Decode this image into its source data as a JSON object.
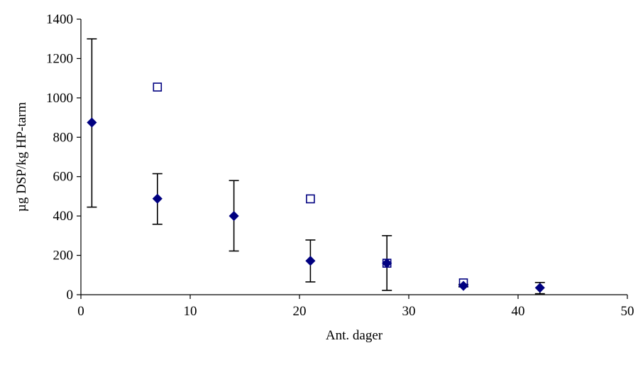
{
  "chart_data": {
    "type": "scatter",
    "xlabel": "Ant. dager",
    "ylabel": "µg DSP/kg HP-tarm",
    "xlim": [
      0,
      50
    ],
    "ylim": [
      0,
      1400
    ],
    "xticks": [
      "0",
      "10",
      "20",
      "30",
      "40",
      "50"
    ],
    "yticks": [
      "0",
      "200",
      "400",
      "600",
      "800",
      "1000",
      "1200",
      "1400"
    ],
    "grid": false,
    "series": [
      {
        "marker": "filled-diamond",
        "color": "#000080",
        "points": [
          {
            "x": 1,
            "y": 875,
            "err_low": 445,
            "err_high": 1300
          },
          {
            "x": 7,
            "y": 488,
            "err_low": 358,
            "err_high": 615
          },
          {
            "x": 14,
            "y": 400,
            "err_low": 222,
            "err_high": 580
          },
          {
            "x": 21,
            "y": 172,
            "err_low": 65,
            "err_high": 278
          },
          {
            "x": 28,
            "y": 160,
            "err_low": 22,
            "err_high": 300
          },
          {
            "x": 35,
            "y": 45,
            "err_low": 40,
            "err_high": 52
          },
          {
            "x": 42,
            "y": 35,
            "err_low": 5,
            "err_high": 62
          }
        ]
      },
      {
        "marker": "open-square",
        "color": "#000080",
        "points": [
          {
            "x": 7,
            "y": 1055
          },
          {
            "x": 21,
            "y": 487
          },
          {
            "x": 28,
            "y": 160
          },
          {
            "x": 35,
            "y": 60
          }
        ]
      }
    ]
  }
}
